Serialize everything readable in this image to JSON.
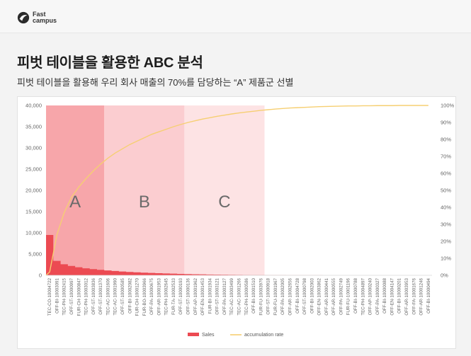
{
  "logo": {
    "line1": "Fast",
    "line2": "campus"
  },
  "title": "피벗 테이블을 활용한 ABC 분석",
  "subtitle": "피벗 테이블을 활용해 우리 회사 매출의 70%를 담당하는 “A” 제품군 선별",
  "colors": {
    "sales": "#ec4a52",
    "accumulation": "#f6cf72",
    "region_a": "#f7a6aa",
    "region_b": "#fbcdd0",
    "region_c": "#fde3e4"
  },
  "chart_data": {
    "type": "bar+line",
    "title": "",
    "xlabel": "",
    "ylabel": "",
    "y_left": {
      "min": 0,
      "max": 40000,
      "ticks": [
        "0",
        "5,000",
        "10,000",
        "15,000",
        "20,000",
        "25,000",
        "30,000",
        "35,000",
        "40,000"
      ]
    },
    "y_right": {
      "min": 0,
      "max": 1,
      "ticks": [
        "0%",
        "10%",
        "20%",
        "30%",
        "40%",
        "50%",
        "60%",
        "70%",
        "80%",
        "90%",
        "100%"
      ]
    },
    "categories": [
      "TEC-CO-10004722",
      "OFF-BI-10003091",
      "TEC-PH-10002415",
      "OFF-ST-10000997",
      "FUR-CH-10000847",
      "TEC-PH-10003012",
      "OFF-ST-10003836",
      "OFF-ST-10001370",
      "TEC-AC-10001606",
      "TEC-AC-10001990",
      "OFF-ST-10000585",
      "OFF-BI-10002082",
      "FUR-CH-10001270",
      "FUR-BO-10003966",
      "OFF-PA-10000675",
      "OFF-AR-10001953",
      "TEC-PH-10002645",
      "FUR-TA-10002533",
      "OFF-ST-10000193",
      "OFF-ST-10000136",
      "OFF-AP-10001962",
      "OFF-EN-10001453",
      "FUR-BI-10001934",
      "OFF-ST-10003121",
      "OFF-PA-10003127",
      "TEC-AC-10003499",
      "TEC-AC-10001266",
      "TEC-PH-10000586",
      "OFF-BI-10001510",
      "FUR-FU-10003976",
      "OFF-ST-10000918",
      "FUR-FU-10001967",
      "OFF-PA-10002005",
      "OFF-AR-10002656",
      "OFF-BI-10004728",
      "OFF-ST-10000798",
      "OFF-BI-10002003",
      "OFF-EN-10003862",
      "OFF-AR-10000441",
      "OFF-AR-10000555",
      "OFF-PA-10002749",
      "FUR-FU-10001196",
      "OFF-BI-10000788",
      "TEC-PH-10004897",
      "OFF-AP-10000240",
      "OFF-PA-10000327",
      "OFF-BI-10000088",
      "OFF-EN-10004147",
      "OFF-BI-10000201",
      "OFF-AR-10003953",
      "OFF-FA-10001676",
      "OFF-AR-10001246",
      "OFF-BI-10000494"
    ],
    "series": [
      {
        "name": "Sales",
        "type": "area",
        "axis": "left",
        "values": [
          9500,
          3400,
          2600,
          2200,
          1900,
          1650,
          1450,
          1300,
          1150,
          1020,
          900,
          800,
          710,
          630,
          560,
          500,
          440,
          390,
          340,
          300,
          260,
          225,
          195,
          165,
          140,
          118,
          100,
          85,
          70,
          58,
          48,
          40,
          33,
          27,
          22,
          18,
          15,
          12,
          10,
          8,
          7,
          6,
          5,
          4,
          3,
          3,
          2,
          2,
          2,
          1,
          1,
          1,
          1
        ]
      },
      {
        "name": "accumulation rate",
        "type": "line",
        "axis": "right",
        "values": [
          0.02,
          0.24,
          0.37,
          0.46,
          0.52,
          0.57,
          0.615,
          0.655,
          0.69,
          0.72,
          0.745,
          0.77,
          0.79,
          0.81,
          0.83,
          0.845,
          0.86,
          0.875,
          0.888,
          0.9,
          0.91,
          0.92,
          0.928,
          0.936,
          0.943,
          0.95,
          0.956,
          0.961,
          0.966,
          0.971,
          0.975,
          0.979,
          0.982,
          0.985,
          0.987,
          0.989,
          0.991,
          0.993,
          0.994,
          0.995,
          0.996,
          0.997,
          0.997,
          0.998,
          0.998,
          0.999,
          0.999,
          0.999,
          1.0,
          1.0,
          1.0,
          1.0,
          1.0
        ]
      }
    ],
    "regions": [
      {
        "label": "A",
        "from_index": 0,
        "to_index": 7
      },
      {
        "label": "B",
        "from_index": 8,
        "to_index": 18
      },
      {
        "label": "C",
        "from_index": 19,
        "to_index": 29
      }
    ],
    "legend": {
      "position": "bottom",
      "items": [
        "Sales",
        "accumulation rate"
      ]
    },
    "grid": false
  }
}
